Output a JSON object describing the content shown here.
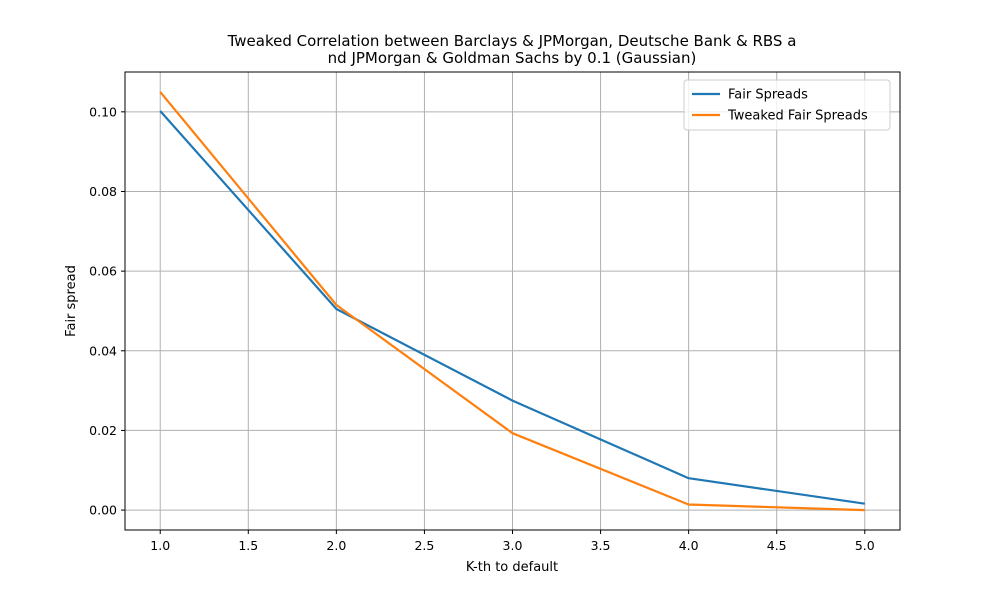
{
  "chart_data": {
    "type": "line",
    "title_line1": "Tweaked Correlation between Barclays & JPMorgan, Deutsche Bank & RBS a",
    "title_line2": "nd JPMorgan & Goldman Sachs by 0.1 (Gaussian)",
    "xlabel": "K-th to default",
    "ylabel": "Fair spread",
    "xlim": [
      0.8,
      5.2
    ],
    "ylim": [
      -0.005,
      0.11
    ],
    "xticks": [
      1.0,
      1.5,
      2.0,
      2.5,
      3.0,
      3.5,
      4.0,
      4.5,
      5.0
    ],
    "xtick_labels": [
      "1.0",
      "1.5",
      "2.0",
      "2.5",
      "3.0",
      "3.5",
      "4.0",
      "4.5",
      "5.0"
    ],
    "yticks": [
      0.0,
      0.02,
      0.04,
      0.06,
      0.08,
      0.1
    ],
    "ytick_labels": [
      "0.00",
      "0.02",
      "0.04",
      "0.06",
      "0.08",
      "0.10"
    ],
    "grid": true,
    "legend_position": "top-right",
    "x": [
      1,
      2,
      3,
      4,
      5
    ],
    "series": [
      {
        "name": "Fair Spreads",
        "color": "#1f77b4",
        "values": [
          0.1002,
          0.0505,
          0.0275,
          0.008,
          0.0016
        ]
      },
      {
        "name": "Tweaked Fair Spreads",
        "color": "#ff7f0e",
        "values": [
          0.105,
          0.0515,
          0.0193,
          0.0014,
          0.0
        ]
      }
    ]
  }
}
